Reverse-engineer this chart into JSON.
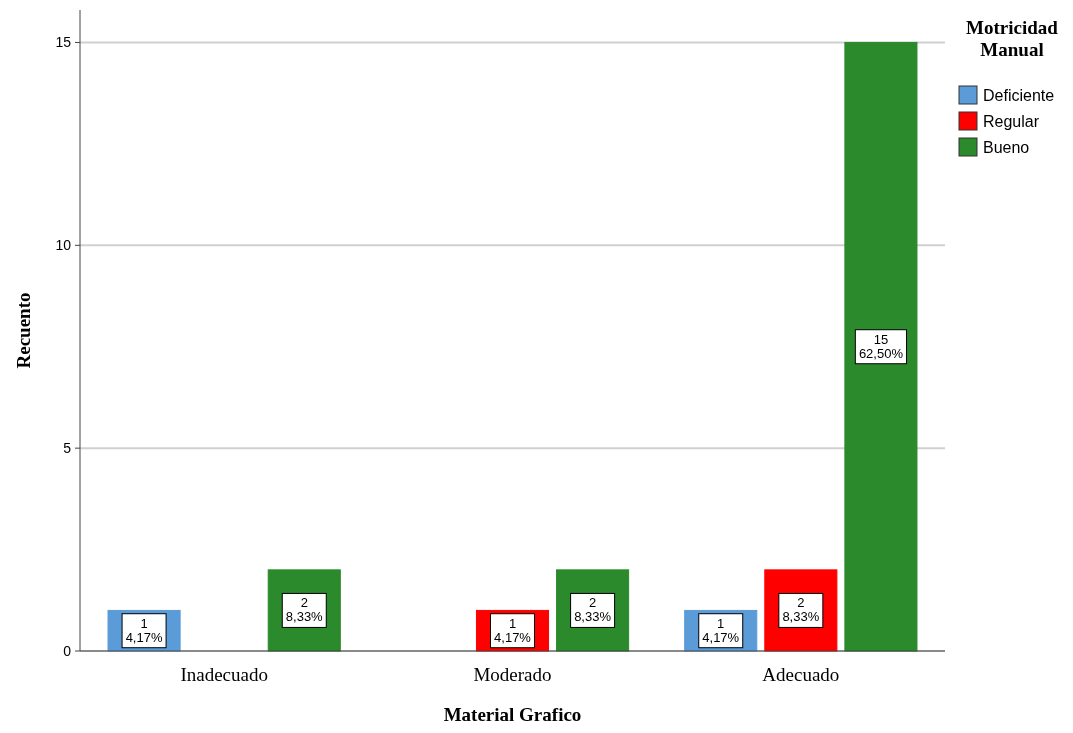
{
  "chart_data": {
    "type": "bar",
    "xlabel": "Material Grafico",
    "ylabel": "Recuento",
    "legend_title": "Motricidad Manual",
    "categories": [
      "Inadecuado",
      "Moderado",
      "Adecuado"
    ],
    "series": [
      {
        "name": "Deficiente",
        "color": "#5a9bd8",
        "values": [
          1,
          null,
          1
        ],
        "value_labels": [
          "1\n4,17%",
          null,
          "1\n4,17%"
        ]
      },
      {
        "name": "Regular",
        "color": "#ff0000",
        "values": [
          null,
          1,
          2
        ],
        "value_labels": [
          null,
          "1\n4,17%",
          "2\n8,33%"
        ]
      },
      {
        "name": "Bueno",
        "color": "#2b8a2b",
        "values": [
          2,
          2,
          15
        ],
        "value_labels": [
          "2\n8,33%",
          "2\n8,33%",
          "15\n62,50%"
        ]
      }
    ],
    "ylim": [
      0,
      15.8
    ],
    "yticks": [
      0,
      5,
      10,
      15
    ],
    "grid": "y",
    "legend": "top right"
  }
}
